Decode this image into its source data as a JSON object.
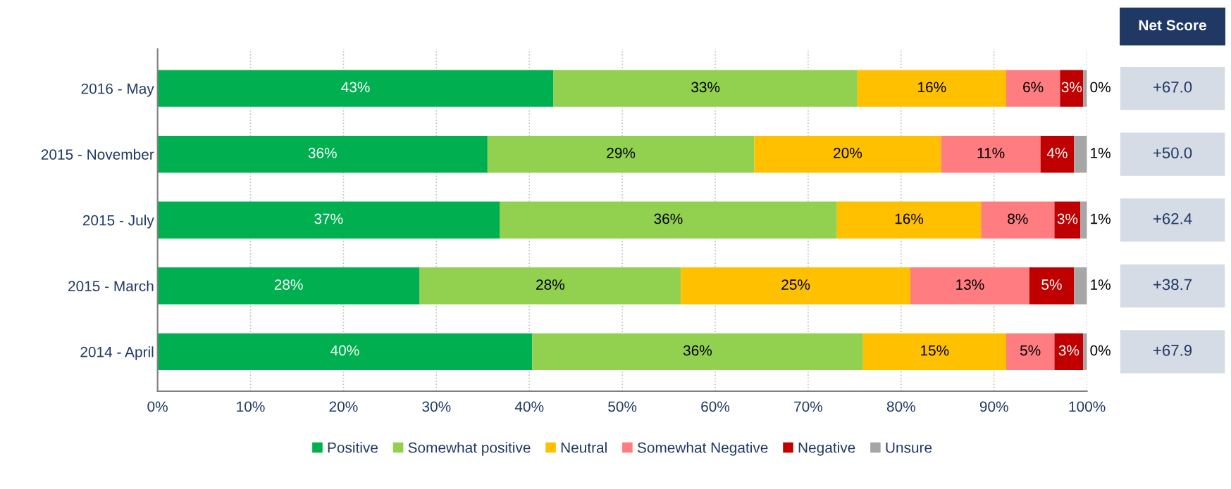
{
  "chart_data": {
    "type": "bar",
    "orientation": "horizontal",
    "stacked": true,
    "categories": [
      "2016 - May",
      "2015 - November",
      "2015 - July",
      "2015 - March",
      "2014 - April"
    ],
    "series": [
      {
        "name": "Positive",
        "color": "#00b050",
        "values": [
          42.6,
          35.5,
          36.8,
          28.2,
          40.3
        ],
        "value_labels": [
          "43%",
          "36%",
          "37%",
          "28%",
          "40%"
        ]
      },
      {
        "name": "Somewhat positive",
        "color": "#92d050",
        "values": [
          32.7,
          28.7,
          36.3,
          28.1,
          35.6
        ],
        "value_labels": [
          "33%",
          "29%",
          "36%",
          "28%",
          "36%"
        ]
      },
      {
        "name": "Neutral",
        "color": "#ffc000",
        "values": [
          16.0,
          20.1,
          15.5,
          24.7,
          15.4
        ],
        "value_labels": [
          "16%",
          "20%",
          "16%",
          "25%",
          "15%"
        ]
      },
      {
        "name": "Somewhat Negative",
        "color": "#ff7c80",
        "values": [
          5.8,
          10.7,
          7.9,
          12.8,
          5.2
        ],
        "value_labels": [
          "6%",
          "11%",
          "8%",
          "13%",
          "5%"
        ]
      },
      {
        "name": "Negative",
        "color": "#c00000",
        "values": [
          2.5,
          3.6,
          2.8,
          4.8,
          3.1
        ],
        "value_labels": [
          "3%",
          "4%",
          "3%",
          "5%",
          "3%"
        ]
      },
      {
        "name": "Unsure",
        "color": "#a6a6a6",
        "values": [
          0.4,
          1.4,
          0.7,
          1.4,
          0.4
        ],
        "value_labels": [
          "0%",
          "1%",
          "1%",
          "1%",
          "0%"
        ]
      }
    ],
    "xlim": [
      0,
      100
    ],
    "xticks": [
      {
        "value": 0,
        "label": "0%"
      },
      {
        "value": 10,
        "label": "10%"
      },
      {
        "value": 20,
        "label": "20%"
      },
      {
        "value": 30,
        "label": "30%"
      },
      {
        "value": 40,
        "label": "40%"
      },
      {
        "value": 50,
        "label": "50%"
      },
      {
        "value": 60,
        "label": "60%"
      },
      {
        "value": 70,
        "label": "70%"
      },
      {
        "value": 80,
        "label": "80%"
      },
      {
        "value": 90,
        "label": "90%"
      },
      {
        "value": 100,
        "label": "100%"
      }
    ],
    "grid": "x",
    "legend": "bottom",
    "annotations": [
      "Net Score",
      "+67.0",
      "+50.0",
      "+62.4",
      "+38.7",
      "+67.9"
    ]
  }
}
